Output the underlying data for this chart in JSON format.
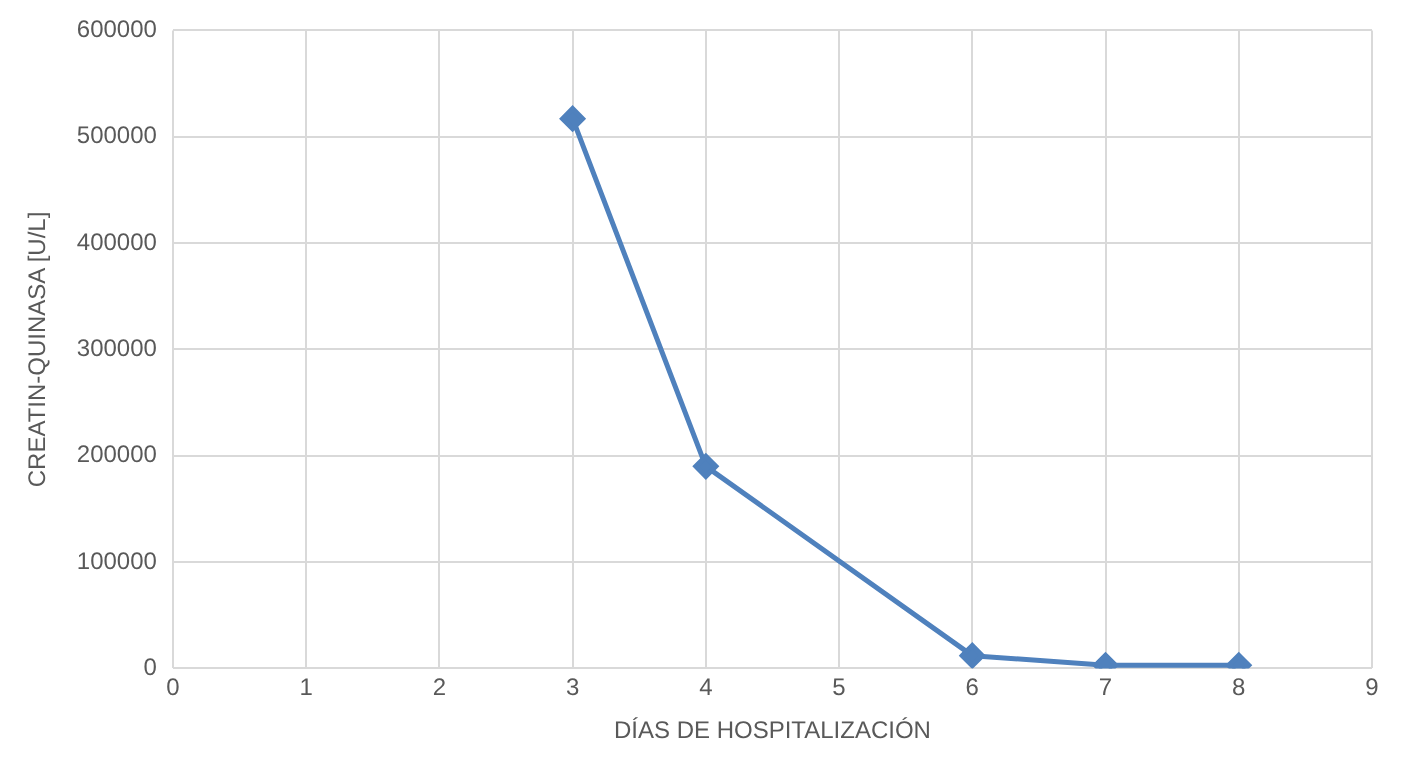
{
  "chart_data": {
    "type": "line",
    "xlabel": "DÍAS DE HOSPITALIZACIÓN",
    "ylabel": "CREATIN-QUINASA [U/L]",
    "x": [
      3,
      4,
      6,
      7,
      8
    ],
    "series": [
      {
        "color": "#4f81bd",
        "values": [
          517000,
          190000,
          12000,
          3000,
          3000
        ]
      }
    ],
    "xlim": [
      0,
      9
    ],
    "xticks": [
      0,
      1,
      2,
      3,
      4,
      5,
      6,
      7,
      8,
      9
    ],
    "ylim": [
      0,
      600000
    ],
    "yticks": [
      0,
      100000,
      200000,
      300000,
      400000,
      500000,
      600000
    ],
    "grid": true,
    "legend": false,
    "marker": "diamond",
    "line_style": "solid"
  }
}
